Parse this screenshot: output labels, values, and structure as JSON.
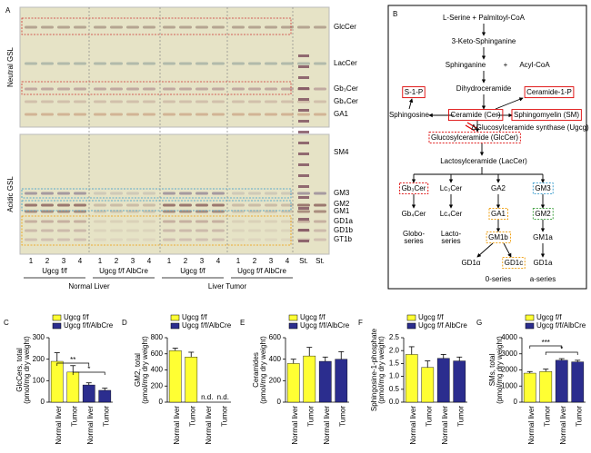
{
  "panel_a": {
    "label": "A",
    "row_labels": [
      "Neutral GSL",
      "Acidic GSL"
    ],
    "band_labels": [
      "GlcCer",
      "LacCer",
      "Gb₃Cer",
      "Gb₄Cer",
      "GA1",
      "SM4",
      "GM3",
      "GM2",
      "GM1",
      "GD1a",
      "GD1b",
      "GT1b"
    ],
    "lanes": [
      "1",
      "2",
      "3",
      "4",
      "1",
      "2",
      "3",
      "4",
      "1",
      "2",
      "3",
      "4",
      "1",
      "2",
      "3",
      "4",
      "St.",
      "St."
    ],
    "groups": [
      "Ugcg f/f",
      "Ugcg f/f AlbCre",
      "Ugcg f/f",
      "Ugcg f/f AlbCre"
    ],
    "tissues": [
      "Normal Liver",
      "Liver Tumor"
    ]
  },
  "panel_b": {
    "label": "B",
    "nodes": [
      "L-Serine + Palmitoyl-CoA",
      "3-Keto-Sphinganine",
      "Sphinganine",
      "+",
      "Acyl-CoA",
      "Dihydroceramide",
      "S-1-P",
      "Ceramide-1-P",
      "Sphingosine",
      "Ceramide (Cer)",
      "Sphingomyelin (SM)",
      "ΔGlucosylceramide synthase (Ugcg)",
      "Glucosylceramide (GlcCer)",
      "Lactosylceramide (LacCer)",
      "Gb₃Cer",
      "Lc₃Cer",
      "GA2",
      "GM3",
      "Gb₄Cer",
      "Lc₄Cer",
      "GA1",
      "GM2",
      [
        "Globo-",
        "series"
      ],
      [
        "Lacto-",
        "series"
      ],
      "GM1b",
      "GM1a",
      "GD1α",
      "GD1c",
      "GD1a",
      "0-series",
      "a-series"
    ]
  },
  "chart_data": [
    {
      "type": "bar",
      "panel_label": "C",
      "ylabel": [
        "GlcCers, total",
        "(pmol/mg dry weight)"
      ],
      "categories": [
        "Normal liver",
        "Tumor",
        "Normal liver",
        "Tumor"
      ],
      "series": [
        {
          "name": "Ugcg f/f",
          "color": "#ffff33",
          "values": [
            190,
            140,
            null,
            null
          ],
          "errors": [
            40,
            30,
            null,
            null
          ]
        },
        {
          "name": "Ugcg f/f/AlbCre",
          "color": "#2b2d8e",
          "values": [
            null,
            null,
            80,
            55
          ],
          "errors": [
            null,
            null,
            10,
            10
          ]
        }
      ],
      "ylim": [
        0,
        300
      ],
      "yticks": [
        0,
        100,
        200,
        300
      ],
      "annotations": [
        "**",
        "*"
      ]
    },
    {
      "type": "bar",
      "panel_label": "D",
      "ylabel": [
        "GM2, total",
        "(pmol/mg dry weight)"
      ],
      "categories": [
        "Normal liver",
        "Tumor",
        "Normal liver",
        "Tumor"
      ],
      "series": [
        {
          "name": "Ugcg f/f",
          "color": "#ffff33",
          "values": [
            640,
            560,
            null,
            null
          ],
          "errors": [
            30,
            60,
            null,
            null
          ]
        },
        {
          "name": "Ugcg f/f/AlbCre",
          "color": "#2b2d8e",
          "values": [
            null,
            null,
            null,
            null
          ],
          "value_labels": [
            null,
            null,
            "n.d.",
            "n.d."
          ]
        }
      ],
      "ylim": [
        0,
        800
      ],
      "yticks": [
        0,
        200,
        400,
        600,
        800
      ],
      "annotations": []
    },
    {
      "type": "bar",
      "panel_label": "E",
      "ylabel": [
        "Ceramides",
        "(pmol/mg dry weight)"
      ],
      "categories": [
        "Normal liver",
        "Tumor",
        "Normal liver",
        "Tumor"
      ],
      "series": [
        {
          "name": "Ugcg f/f",
          "color": "#ffff33",
          "values": [
            360,
            430,
            null,
            null
          ],
          "errors": [
            40,
            80,
            null,
            null
          ]
        },
        {
          "name": "Ugcg f/f/AlbCre",
          "color": "#2b2d8e",
          "values": [
            null,
            null,
            380,
            400
          ],
          "errors": [
            null,
            null,
            40,
            70
          ]
        }
      ],
      "ylim": [
        0,
        600
      ],
      "yticks": [
        0,
        200,
        400,
        600
      ],
      "annotations": []
    },
    {
      "type": "bar",
      "panel_label": "F",
      "ylabel": [
        "Sphingosine-1-phosphate",
        "(pmol/mg dry weight)"
      ],
      "categories": [
        "Normal liver",
        "Tumor",
        "Normal liver",
        "Tumor"
      ],
      "series": [
        {
          "name": "Ugcg f/f",
          "color": "#ffff33",
          "values": [
            1.85,
            1.35,
            null,
            null
          ],
          "errors": [
            0.3,
            0.25,
            null,
            null
          ]
        },
        {
          "name": "Ugcg f/f AlbCre",
          "color": "#2b2d8e",
          "values": [
            null,
            null,
            1.7,
            1.6
          ],
          "errors": [
            null,
            null,
            0.15,
            0.15
          ]
        }
      ],
      "ylim": [
        0,
        2.5
      ],
      "yticks": [
        {
          "value": 0,
          "label": "0.0"
        },
        0.5,
        {
          "value": 1,
          "label": "1.0"
        },
        1.5,
        {
          "value": 2,
          "label": "2.0"
        },
        2.5
      ],
      "annotations": []
    },
    {
      "type": "bar",
      "panel_label": "G",
      "ylabel": [
        "SMs, total",
        "(pmol/mg dry weight)"
      ],
      "categories": [
        "Normal liver",
        "Tumor",
        "Normal liver",
        "Tumor"
      ],
      "series": [
        {
          "name": "Ugcg f/f",
          "color": "#ffff33",
          "values": [
            1800,
            1900,
            null,
            null
          ],
          "errors": [
            100,
            150,
            null,
            null
          ]
        },
        {
          "name": "Ugcg f/f/AlbCre",
          "color": "#2b2d8e",
          "values": [
            null,
            null,
            2600,
            2500
          ],
          "errors": [
            null,
            null,
            100,
            100
          ]
        }
      ],
      "ylim": [
        0,
        4000
      ],
      "yticks": [
        0,
        1000,
        2000,
        3000,
        4000
      ],
      "annotations": [
        "***",
        "*"
      ]
    }
  ]
}
